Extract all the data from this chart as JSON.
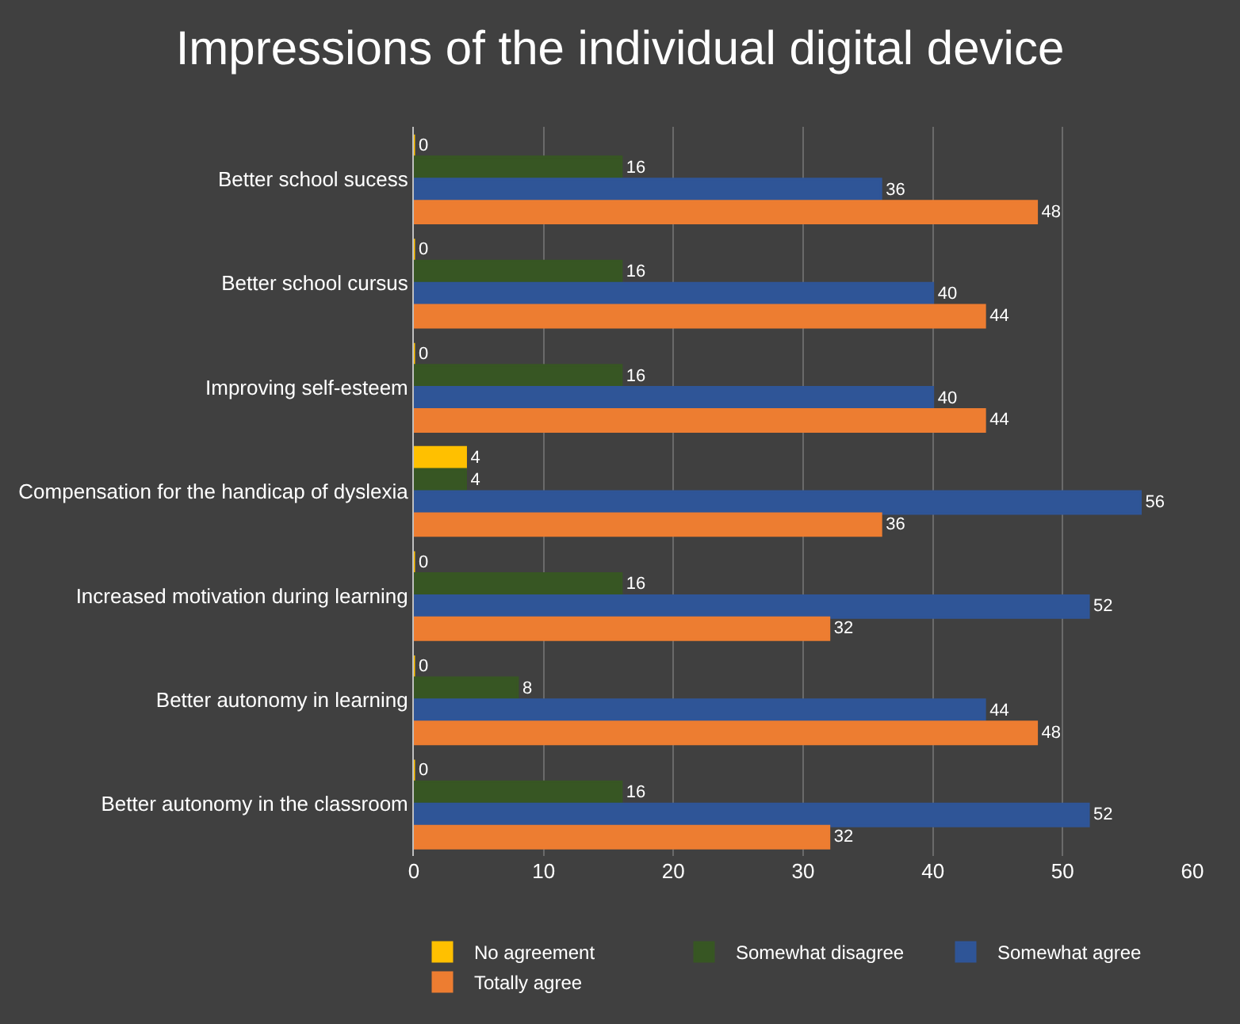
{
  "chart_data": {
    "type": "bar",
    "orientation": "horizontal",
    "title": "Impressions of the individual digital device",
    "categories": [
      "Better school sucess",
      "Better school cursus",
      "Improving self-esteem",
      "Compensation for the handicap of dyslexia",
      "Increased motivation during learning",
      "Better autonomy in learning",
      "Better autonomy in the classroom"
    ],
    "series": [
      {
        "name": "No agreement",
        "color": "#ffc000",
        "values": [
          0,
          0,
          0,
          4,
          0,
          0,
          0
        ]
      },
      {
        "name": "Somewhat disagree",
        "color": "#375623",
        "values": [
          16,
          16,
          16,
          4,
          16,
          8,
          16
        ]
      },
      {
        "name": "Somewhat agree",
        "color": "#2f5597",
        "values": [
          36,
          40,
          40,
          56,
          52,
          44,
          52
        ]
      },
      {
        "name": "Totally agree",
        "color": "#ed7d31",
        "values": [
          48,
          44,
          44,
          36,
          32,
          48,
          32
        ]
      }
    ],
    "xlim": [
      0,
      60
    ],
    "xticks": [
      0,
      10,
      20,
      30,
      40,
      50,
      60
    ],
    "grid": "x",
    "legend": "bottom",
    "data_labels": true
  }
}
